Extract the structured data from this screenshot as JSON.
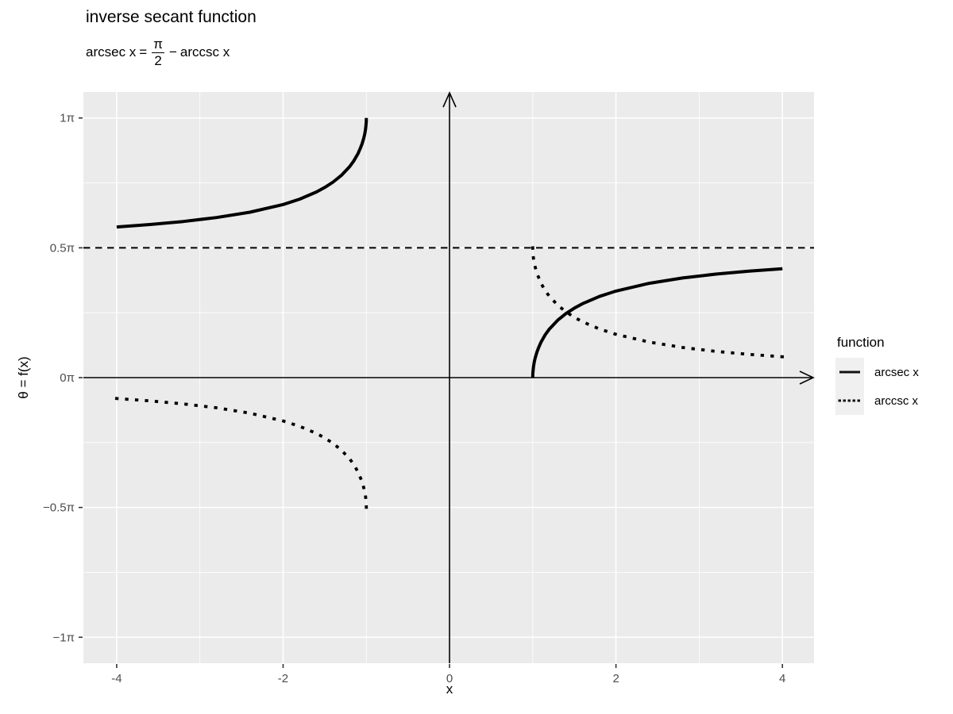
{
  "header": {
    "title": "inverse secant function",
    "equation": {
      "lhs": "arcsec x",
      "equals": "=",
      "numerator": "π",
      "denominator": "2",
      "operator": "−",
      "rhs": "arccsc x"
    }
  },
  "axes": {
    "x_title": "x",
    "y_title": "θ = f(x)"
  },
  "legend": {
    "title": "function",
    "items": [
      {
        "label": "arcsec x",
        "linetype": "solid"
      },
      {
        "label": "arccsc x",
        "linetype": "dotted"
      }
    ]
  },
  "chart_data": {
    "type": "line",
    "title": "inverse secant function",
    "subtitle": "arcsec x = π/2 − arccsc x",
    "xlabel": "x",
    "ylabel": "θ = f(x)",
    "y_units": "multiples of π",
    "xlim": [
      -4.4,
      4.38
    ],
    "ylim_pi": [
      -1.1,
      1.1
    ],
    "grid": true,
    "legend_position": "right",
    "x_major_ticks": [
      {
        "v": -4,
        "label": "-4"
      },
      {
        "v": -2,
        "label": "-2"
      },
      {
        "v": 0,
        "label": "0"
      },
      {
        "v": 2,
        "label": "2"
      },
      {
        "v": 4,
        "label": "4"
      }
    ],
    "y_major_ticks": [
      {
        "v": 1,
        "label": "1π"
      },
      {
        "v": 0.5,
        "label": "0.5π"
      },
      {
        "v": 0,
        "label": "0π"
      },
      {
        "v": -0.5,
        "label": "−0.5π"
      },
      {
        "v": -1,
        "label": "−1π"
      }
    ],
    "x_minor": [
      -3,
      -1,
      1,
      3
    ],
    "y_minor": [
      0.75,
      0.25,
      -0.25,
      -0.75
    ],
    "reference_line": {
      "y_pi": 0.5,
      "style": "dashed",
      "color": "#000000"
    },
    "axis_arrows": {
      "horizontal_at_y_pi": 0,
      "vertical_at_x": 0
    },
    "colors": {
      "panel_bg": "#EBEBEB",
      "grid": "#FFFFFF",
      "curve": "#000000",
      "tick_label": "#4D4D4D",
      "tick_mark": "#333333",
      "legend_key_bg": "#F0F0F0"
    },
    "series": [
      {
        "key": "arcsec",
        "name": "arcsec x",
        "linetype": "solid",
        "segments": [
          [
            [
              -4,
              0.5804
            ],
            [
              -3.6,
              0.5896
            ],
            [
              -3.2,
              0.6013
            ],
            [
              -2.8,
              0.6165
            ],
            [
              -2.4,
              0.637
            ],
            [
              -2,
              0.6667
            ],
            [
              -1.8,
              0.6875
            ],
            [
              -1.6,
              0.7149
            ],
            [
              -1.5,
              0.7323
            ],
            [
              -1.4,
              0.7532
            ],
            [
              -1.3,
              0.7789
            ],
            [
              -1.2,
              0.8128
            ],
            [
              -1.15,
              0.8349
            ],
            [
              -1.1,
              0.863
            ],
            [
              -1.07,
              0.8845
            ],
            [
              -1.05,
              0.9015
            ],
            [
              -1.03,
              0.9231
            ],
            [
              -1.02,
              0.937
            ],
            [
              -1.01,
              0.9552
            ],
            [
              -1.005,
              0.9682
            ],
            [
              -1.001,
              0.9857
            ],
            [
              -1,
              1
            ]
          ],
          [
            [
              1,
              0
            ],
            [
              1.001,
              0.0143
            ],
            [
              1.005,
              0.0318
            ],
            [
              1.01,
              0.0448
            ],
            [
              1.02,
              0.063
            ],
            [
              1.03,
              0.0769
            ],
            [
              1.05,
              0.0985
            ],
            [
              1.07,
              0.1155
            ],
            [
              1.1,
              0.1368
            ],
            [
              1.15,
              0.1651
            ],
            [
              1.2,
              0.1872
            ],
            [
              1.3,
              0.2211
            ],
            [
              1.4,
              0.2468
            ],
            [
              1.5,
              0.2677
            ],
            [
              1.6,
              0.2851
            ],
            [
              1.8,
              0.3125
            ],
            [
              2,
              0.3333
            ],
            [
              2.4,
              0.3632
            ],
            [
              2.8,
              0.3838
            ],
            [
              3.2,
              0.3988
            ],
            [
              3.6,
              0.4104
            ],
            [
              4,
              0.4196
            ]
          ]
        ]
      },
      {
        "key": "arccsc",
        "name": "arccsc x",
        "linetype": "dotted",
        "segments": [
          [
            [
              -4,
              -0.0804
            ],
            [
              -3.6,
              -0.0896
            ],
            [
              -3.2,
              -0.1012
            ],
            [
              -2.8,
              -0.1162
            ],
            [
              -2.4,
              -0.1368
            ],
            [
              -2,
              -0.1667
            ],
            [
              -1.8,
              -0.1875
            ],
            [
              -1.6,
              -0.2149
            ],
            [
              -1.5,
              -0.2323
            ],
            [
              -1.4,
              -0.2532
            ],
            [
              -1.3,
              -0.2789
            ],
            [
              -1.2,
              -0.3128
            ],
            [
              -1.15,
              -0.3349
            ],
            [
              -1.1,
              -0.3632
            ],
            [
              -1.05,
              -0.4015
            ],
            [
              -1.02,
              -0.437
            ],
            [
              -1.01,
              -0.4552
            ],
            [
              -1.005,
              -0.4682
            ],
            [
              -1,
              -0.5
            ]
          ],
          [
            [
              1,
              0.5
            ],
            [
              1.005,
              0.4682
            ],
            [
              1.01,
              0.4552
            ],
            [
              1.02,
              0.437
            ],
            [
              1.05,
              0.4015
            ],
            [
              1.1,
              0.3632
            ],
            [
              1.15,
              0.3349
            ],
            [
              1.2,
              0.3128
            ],
            [
              1.3,
              0.2789
            ],
            [
              1.4,
              0.2532
            ],
            [
              1.5,
              0.2323
            ],
            [
              1.6,
              0.2149
            ],
            [
              1.8,
              0.1875
            ],
            [
              2,
              0.1667
            ],
            [
              2.4,
              0.1368
            ],
            [
              2.8,
              0.1162
            ],
            [
              3.2,
              0.1012
            ],
            [
              3.6,
              0.0896
            ],
            [
              4,
              0.0804
            ]
          ]
        ]
      }
    ]
  }
}
